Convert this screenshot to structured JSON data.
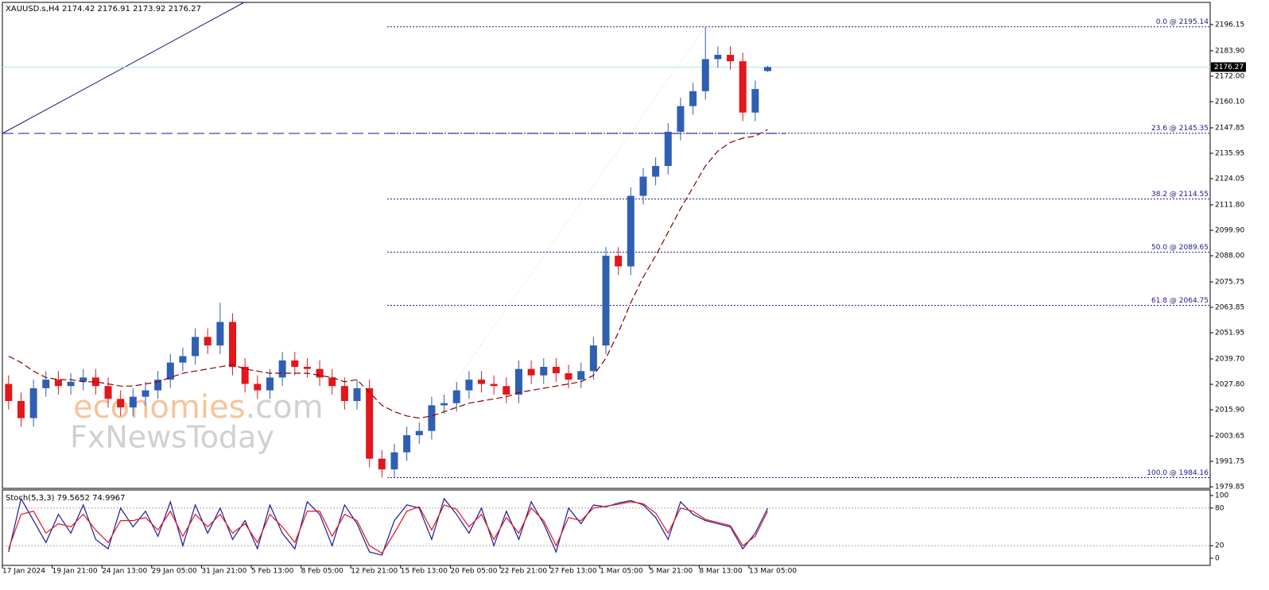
{
  "chart_data": [
    {
      "type": "candlestick",
      "title": "XAUUSD.s,H4  2174.42 2176.91 2173.92 2176.27",
      "watermark": [
        "economies",
        ".com",
        "FxNewsToday"
      ],
      "categories": [
        "17 Jan 2024",
        null,
        null,
        null,
        "19 Jan 21:00",
        null,
        null,
        null,
        "24 Jan 13:00",
        null,
        null,
        null,
        "29 Jan 05:00",
        null,
        null,
        null,
        "31 Jan 21:00",
        null,
        null,
        null,
        "5 Feb 13:00",
        null,
        null,
        null,
        "8 Feb 05:00",
        null,
        null,
        null,
        "12 Feb 21:00",
        null,
        null,
        null,
        "15 Feb 13:00",
        null,
        null,
        null,
        "20 Feb 05:00",
        null,
        null,
        null,
        "22 Feb 21:00",
        null,
        null,
        null,
        "27 Feb 13:00",
        null,
        null,
        null,
        "1 Mar 05:00",
        null,
        null,
        null,
        "5 Mar 21:00",
        null,
        null,
        null,
        "8 Mar 13:00",
        null,
        null,
        null,
        "13 Mar 05:00",
        null
      ],
      "open": [
        2028,
        2020,
        2012,
        2026,
        2030,
        2027,
        2029,
        2031,
        2027,
        2021,
        2017,
        2022,
        2025,
        2030,
        2038,
        2041,
        2050,
        2046,
        2057,
        2036,
        2028,
        2025,
        2031,
        2039,
        2036,
        2035,
        2031,
        2027,
        2020,
        2026,
        1993,
        1988,
        1996,
        2004,
        2006,
        2018,
        2019,
        2025,
        2030,
        2028,
        2027,
        2023,
        2035,
        2032,
        2036,
        2033,
        2030,
        2034,
        2046,
        2088,
        2083,
        2116,
        2125,
        2130,
        2146,
        2158,
        2165,
        2180,
        2182,
        2179,
        2155,
        2174.42
      ],
      "high": [
        2032,
        2024,
        2030,
        2034,
        2034,
        2033,
        2035,
        2035,
        2031,
        2025,
        2026,
        2029,
        2034,
        2042,
        2045,
        2054,
        2054,
        2066,
        2061,
        2040,
        2032,
        2035,
        2043,
        2043,
        2040,
        2039,
        2035,
        2031,
        2030,
        2030,
        1997,
        2000,
        2008,
        2010,
        2022,
        2023,
        2029,
        2034,
        2034,
        2032,
        2031,
        2039,
        2039,
        2040,
        2040,
        2037,
        2038,
        2050,
        2092,
        2092,
        2120,
        2129,
        2134,
        2150,
        2162,
        2169,
        2195.14,
        2186,
        2186,
        2183,
        2170,
        2176.91
      ],
      "low": [
        2016,
        2008,
        2008,
        2022,
        2023,
        2023,
        2025,
        2023,
        2017,
        2013,
        2013,
        2018,
        2021,
        2026,
        2034,
        2037,
        2042,
        2042,
        2032,
        2024,
        2021,
        2021,
        2027,
        2032,
        2031,
        2027,
        2023,
        2016,
        2016,
        1989,
        1984.16,
        1984,
        1992,
        2000,
        2002,
        2014,
        2015,
        2021,
        2024,
        2023,
        2019,
        2019,
        2028,
        2028,
        2029,
        2026,
        2026,
        2030,
        2042,
        2079,
        2079,
        2112,
        2121,
        2126,
        2142,
        2154,
        2161,
        2176,
        2175,
        2151,
        2151,
        2173.92
      ],
      "close": [
        2020,
        2012,
        2026,
        2030,
        2027,
        2029,
        2031,
        2027,
        2021,
        2017,
        2022,
        2025,
        2030,
        2038,
        2041,
        2050,
        2046,
        2057,
        2036,
        2028,
        2025,
        2031,
        2039,
        2036,
        2035,
        2031,
        2027,
        2020,
        2026,
        1993,
        1988,
        1996,
        2004,
        2006,
        2018,
        2019,
        2025,
        2030,
        2028,
        2027,
        2023,
        2035,
        2032,
        2036,
        2033,
        2030,
        2034,
        2046,
        2088,
        2083,
        2116,
        2125,
        2130,
        2146,
        2158,
        2165,
        2180,
        2182,
        2179,
        2155,
        2166,
        2176.27
      ],
      "up_color": "#2e5fb3",
      "down_color": "#e3161b",
      "ma": {
        "color": "#8b0000",
        "values": [
          2041,
          2038,
          2034,
          2031,
          2030,
          2030,
          2029,
          2029,
          2028,
          2027,
          2027,
          2028,
          2029,
          2031,
          2033,
          2034,
          2035,
          2036,
          2037,
          2035,
          2034,
          2033,
          2033,
          2033,
          2033,
          2032,
          2031,
          2029,
          2030,
          2024,
          2018,
          2015,
          2013,
          2012,
          2013,
          2015,
          2017,
          2019,
          2020,
          2021,
          2022,
          2024,
          2025,
          2026,
          2027,
          2028,
          2029,
          2032,
          2040,
          2052,
          2066,
          2078,
          2088,
          2099,
          2110,
          2120,
          2130,
          2137,
          2141,
          2143,
          2144,
          2147
        ]
      },
      "fib_levels": [
        {
          "label": "0.0 @ 2195.14",
          "value": 2195.14
        },
        {
          "label": "23.6 @ 2145.35",
          "value": 2145.35
        },
        {
          "label": "38.2 @ 2114.55",
          "value": 2114.55
        },
        {
          "label": "50.0 @ 2089.65",
          "value": 2089.65
        },
        {
          "label": "61.8 @ 2064.75",
          "value": 2064.75
        },
        {
          "label": "100.0 @ 1984.16",
          "value": 1984.16
        }
      ],
      "last_price": 2176.27,
      "ylim": [
        1979.13,
        2206.55
      ],
      "yticks": [
        2196.15,
        {
          "value": 2183.9,
          "label": "2183.90"
        },
        {
          "value": 2172,
          "label": "2172.00"
        },
        {
          "value": 2160.1,
          "label": "2160.10"
        },
        2147.85,
        2135.95,
        2124.05,
        {
          "value": 2111.8,
          "label": "2111.80"
        },
        {
          "value": 2099.9,
          "label": "2099.90"
        },
        {
          "value": 2088,
          "label": "2088.00"
        },
        2075.75,
        2063.85,
        2051.95,
        {
          "value": 2039.7,
          "label": "2039.70"
        },
        {
          "value": 2027.8,
          "label": "2027.80"
        },
        {
          "value": 2015.9,
          "label": "2015.90"
        },
        2003.65,
        1991.75,
        1979.85
      ]
    },
    {
      "type": "line",
      "title": "Stoch(5,3,3) 79.5652 74.9967",
      "series": [
        {
          "color": "#1a1a9c",
          "values": [
            10,
            95,
            60,
            25,
            70,
            40,
            85,
            30,
            15,
            80,
            50,
            75,
            35,
            90,
            20,
            85,
            40,
            80,
            30,
            60,
            15,
            85,
            40,
            15,
            90,
            70,
            20,
            85,
            55,
            10,
            5,
            60,
            85,
            80,
            30,
            95,
            70,
            40,
            80,
            20,
            75,
            30,
            90,
            55,
            10,
            80,
            55,
            85,
            82,
            88,
            92,
            85,
            65,
            30,
            90,
            70,
            60,
            55,
            50,
            15,
            40,
            79.5652
          ]
        },
        {
          "color": "#e3161b",
          "values": [
            15,
            70,
            75,
            40,
            55,
            50,
            70,
            45,
            25,
            60,
            60,
            65,
            45,
            75,
            35,
            70,
            50,
            70,
            40,
            55,
            25,
            70,
            50,
            25,
            75,
            75,
            35,
            70,
            60,
            20,
            8,
            40,
            75,
            82,
            45,
            85,
            78,
            50,
            70,
            30,
            65,
            40,
            80,
            60,
            20,
            65,
            60,
            80,
            83,
            86,
            90,
            87,
            72,
            40,
            80,
            75,
            62,
            57,
            52,
            20,
            35,
            74.9967
          ]
        }
      ],
      "ylim": [
        0,
        100
      ],
      "yticks": [
        0,
        20,
        80,
        100
      ],
      "grid_levels": [
        20,
        80
      ]
    }
  ]
}
